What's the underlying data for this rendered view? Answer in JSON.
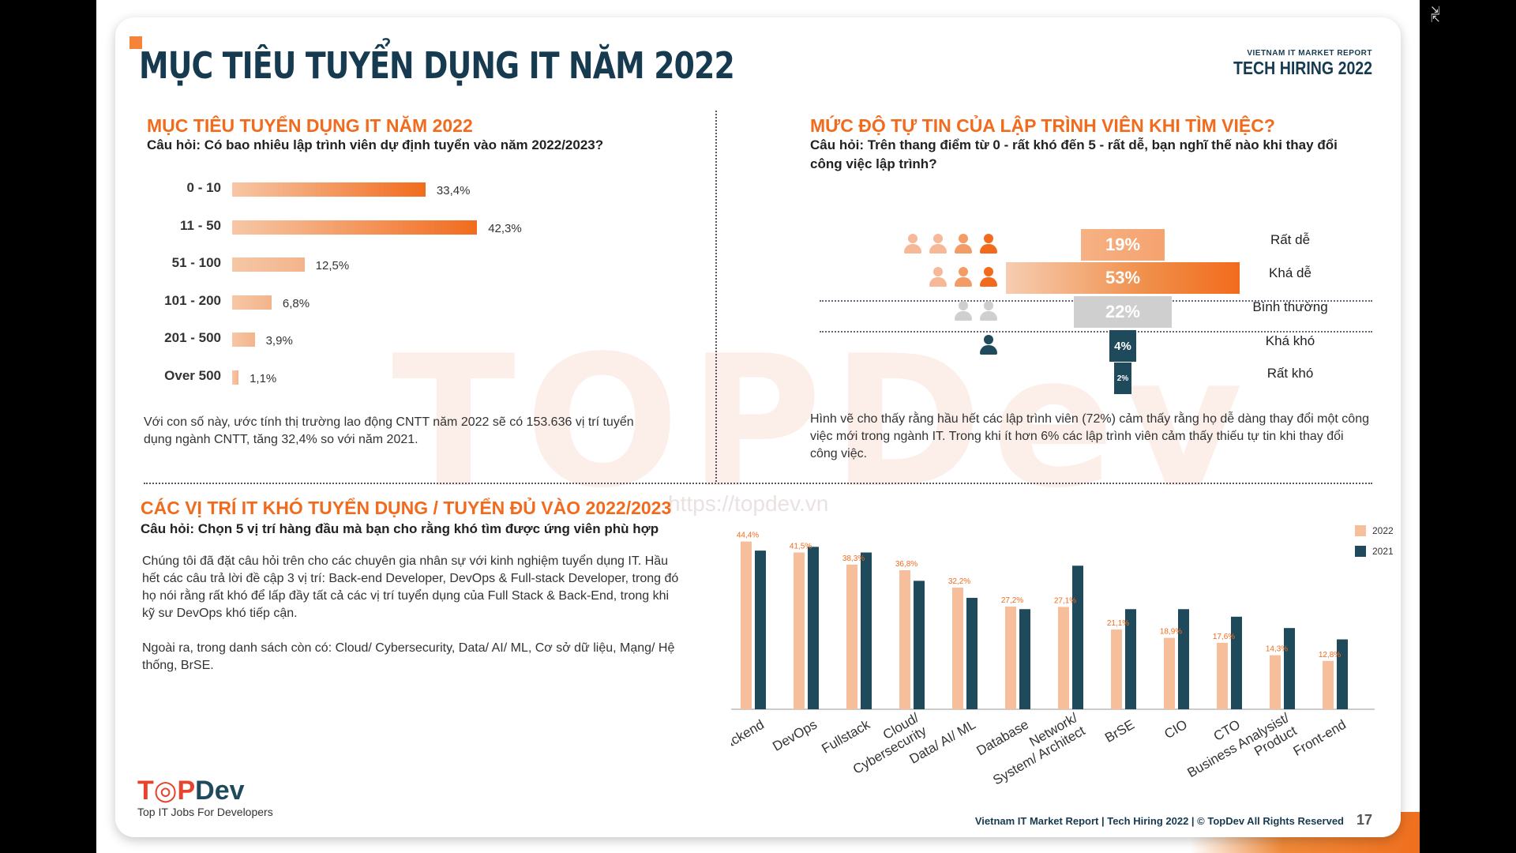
{
  "header": {
    "title": "MỤC TIÊU TUYỂN DỤNG IT NĂM 2022",
    "brand_line1": "VIETNAM IT MARKET REPORT",
    "brand_line2": "TECH HIRING 2022"
  },
  "watermark": {
    "text": "TOPDev",
    "url": "https://topdev.vn"
  },
  "section1": {
    "title": "MỤC TIÊU TUYỂN DỤNG IT NĂM 2022",
    "question": "Câu hỏi: Có bao nhiêu lập trình viên dự định tuyển vào năm 2022/2023?",
    "paragraph": "Với con số này, ước tính thị trường lao động CNTT năm 2022 sẽ có 153.636 vị trí tuyển dụng ngành CNTT, tăng 32,4% so với năm 2021."
  },
  "section2": {
    "title": "MỨC ĐỘ TỰ TIN CỦA LẬP TRÌNH VIÊN KHI TÌM VIỆC?",
    "question": "Câu hỏi: Trên thang điểm từ 0 - rất khó đến 5 - rất dễ, bạn nghĩ thế nào khi thay đổi công việc lập trình?",
    "paragraph": "Hình vẽ cho thấy rằng hầu hết các lập trình viên (72%) cảm thấy rằng họ dễ dàng thay đổi một công việc mới trong ngành IT. Trong khi ít hơn 6% các lập trình viên cảm thấy thiếu tự tin khi thay đổi công việc."
  },
  "section3": {
    "title": "CÁC VỊ TRÍ IT KHÓ TUYỂN DỤNG / TUYỂN ĐỦ VÀO 2022/2023",
    "question": "Câu hỏi: Chọn 5 vị trí hàng đầu mà bạn cho rằng khó tìm được ứng viên phù hợp",
    "paragraph1": "Chúng tôi đã đặt câu hỏi trên cho các chuyên gia nhân sự với kinh nghiệm tuyển dụng IT. Hầu hết các câu trả lời đề cập 3 vị trí: Back-end Developer, DevOps & Full-stack Developer, trong đó họ nói rằng rất khó để lấp đầy tất cả các vị trí tuyển dụng của Full Stack & Back-End, trong khi kỹ sư DevOps khó tiếp cận.",
    "paragraph2": "Ngoài ra, trong danh sách còn có: Cloud/ Cybersecurity, Data/ AI/ ML, Cơ sở dữ liệu, Mạng/ Hệ thống, BrSE."
  },
  "footer": {
    "logo_word": "TOPDev",
    "logo_tagline": "Top IT Jobs For Developers",
    "text": "Vietnam IT Market Report | Tech Hiring 2022 | © TopDev All Rights Reserved",
    "page": "17"
  },
  "colors": {
    "orange": "#f26b1d",
    "orange_light": "#f5b48a",
    "peach": "#f4c3a4",
    "navy": "#1f4a5c",
    "grey": "#cfcfcf"
  },
  "chart_data": [
    {
      "type": "bar",
      "orientation": "horizontal",
      "categories": [
        "0 - 10",
        "11 - 50",
        "51 - 100",
        "101 - 200",
        "201 - 500",
        "Over 500"
      ],
      "values": [
        33.4,
        42.3,
        12.5,
        6.8,
        3.9,
        1.1
      ],
      "value_labels": [
        "33,4%",
        "42,3%",
        "12,5%",
        "6,8%",
        "3,9%",
        "1,1%"
      ],
      "xlim": [
        0,
        45
      ]
    },
    {
      "type": "bar",
      "orientation": "horizontal-centered",
      "categories": [
        "Rất dễ",
        "Khá dễ",
        "Bình thường",
        "Khá khó",
        "Rất khó"
      ],
      "values": [
        19,
        53,
        22,
        4,
        2
      ],
      "value_labels": [
        "19%",
        "53%",
        "22%",
        "4%",
        "2%"
      ],
      "icon_counts": [
        4,
        3,
        2,
        1,
        0
      ],
      "icon": "person-icon"
    },
    {
      "type": "bar",
      "categories": [
        "Backend",
        "DevOps",
        "Fullstack",
        "Cloud/ Cybersecurity",
        "Data/ AI/ ML",
        "Database",
        "Network/ System/ Architect",
        "BrSE",
        "CIO",
        "CTO",
        "Business Analysist/ Product",
        "Front-end"
      ],
      "category_lines": [
        [
          "Backend"
        ],
        [
          "DevOps"
        ],
        [
          "Fullstack"
        ],
        [
          "Cloud/",
          "Cybersecurity"
        ],
        [
          "Data/ AI/ ML"
        ],
        [
          "Database"
        ],
        [
          "Network/",
          "System/ Architect"
        ],
        [
          "BrSE"
        ],
        [
          "CIO"
        ],
        [
          "CTO"
        ],
        [
          "Business Analysist/",
          "Product"
        ],
        [
          "Front-end"
        ]
      ],
      "series": [
        {
          "name": "2022",
          "values": [
            44.4,
            41.5,
            38.3,
            36.8,
            32.2,
            27.2,
            27.1,
            21.1,
            18.9,
            17.6,
            14.3,
            12.8
          ],
          "labels": [
            "44,4%",
            "41,5%",
            "38,3%",
            "36,8%",
            "32,2%",
            "27,2%",
            "27,1%",
            "21,1%",
            "18,9%",
            "17,6%",
            "14,3%",
            "12,8%"
          ]
        },
        {
          "name": "2021",
          "values": [
            42.0,
            43.0,
            41.5,
            34.0,
            29.5,
            26.5,
            38.0,
            26.5,
            26.5,
            24.5,
            21.5,
            18.5
          ]
        }
      ],
      "legend": "top-right",
      "ylim": [
        0,
        46
      ]
    }
  ]
}
